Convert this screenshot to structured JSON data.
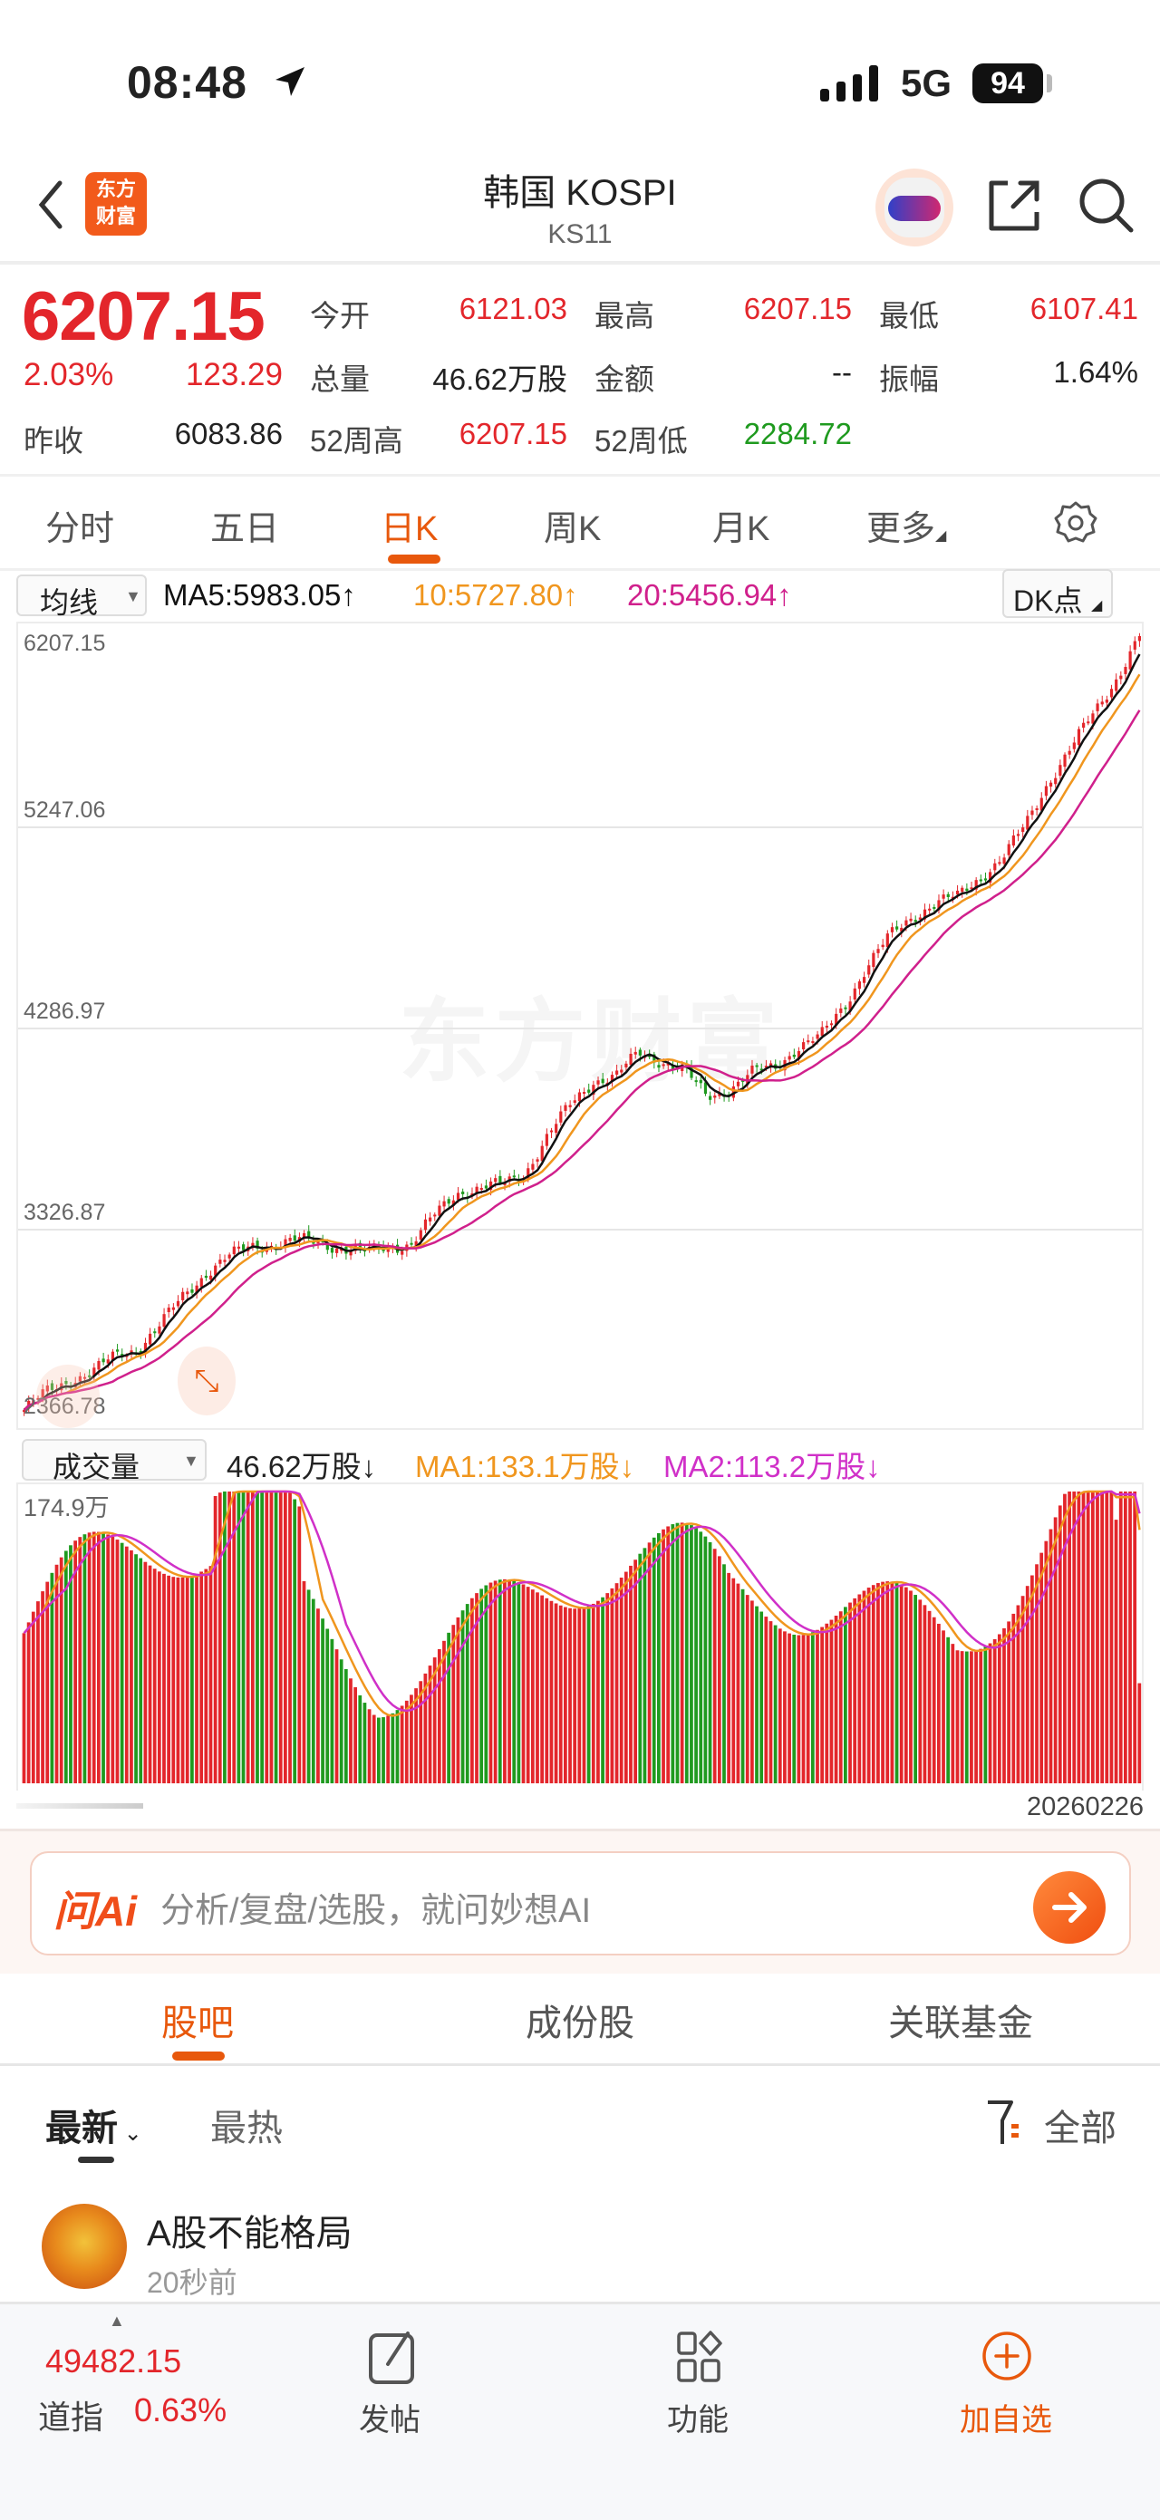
{
  "status_bar": {
    "time": "08:48",
    "network": "5G",
    "battery": "94"
  },
  "nav": {
    "logo_line1": "东方",
    "logo_line2": "财富",
    "title": "韩国 KOSPI",
    "code": "KS11"
  },
  "quote": {
    "price": "6207.15",
    "change_pct": "2.03%",
    "change_abs": "123.29",
    "fields": [
      {
        "label": "今开",
        "value": "6121.03",
        "color": "red"
      },
      {
        "label": "最高",
        "value": "6207.15",
        "color": "red"
      },
      {
        "label": "最低",
        "value": "6107.41",
        "color": "red"
      },
      {
        "label": "总量",
        "value": "46.62万股",
        "color": "black"
      },
      {
        "label": "金额",
        "value": "--",
        "color": "black"
      },
      {
        "label": "振幅",
        "value": "1.64%",
        "color": "black"
      },
      {
        "label": "昨收",
        "value": "6083.86",
        "color": "black"
      },
      {
        "label": "52周高",
        "value": "6207.15",
        "color": "red"
      },
      {
        "label": "52周低",
        "value": "2284.72",
        "color": "green"
      }
    ]
  },
  "period_tabs": {
    "items": [
      "分时",
      "五日",
      "日K",
      "周K",
      "月K",
      "更多"
    ],
    "active": "日K"
  },
  "ma_legend": {
    "selector": "均线",
    "ma5": "MA5:5983.05↑",
    "ma10": "10:5727.80↑",
    "ma20": "20:5456.94↑",
    "dk_button": "DK点"
  },
  "volume_legend": {
    "selector": "成交量",
    "vol": "46.62万股↓",
    "ma1": "MA1:133.1万股↓",
    "ma2": "MA2:113.2万股↓"
  },
  "colors": {
    "up": "#e3262b",
    "down": "#1f9a1f",
    "accent": "#e8580c",
    "ma5": "#111111",
    "ma10": "#f0961e",
    "ma20": "#d0208c"
  },
  "chart_data": [
    {
      "type": "candlestick",
      "title": "韩国 KOSPI 日K",
      "ylabel": "",
      "y_ticks": [
        "6207.15",
        "5247.06",
        "4286.97",
        "3326.87",
        "2366.78"
      ],
      "ylim": [
        2366.78,
        6207.15
      ],
      "grid": true,
      "x_end_label": "20260226",
      "close_path_approx": [
        2330,
        2420,
        2480,
        2520,
        2600,
        2640,
        2760,
        2900,
        3020,
        3100,
        3150,
        3160,
        3180,
        3170,
        3140,
        3120,
        3150,
        3160,
        3300,
        3420,
        3440,
        3460,
        3520,
        3700,
        3860,
        3980,
        4000,
        4120,
        4080,
        4030,
        3900,
        3940,
        4020,
        4050,
        4150,
        4200,
        4350,
        4550,
        4700,
        4800,
        4870,
        4900,
        5000,
        5100,
        5260,
        5480,
        5650,
        5820,
        6000,
        6207.15
      ],
      "series": [
        {
          "name": "MA5",
          "last": 5983.05
        },
        {
          "name": "MA10",
          "last": 5727.8
        },
        {
          "name": "MA20",
          "last": 5456.94
        }
      ],
      "watermark": "东方财富"
    },
    {
      "type": "bar",
      "title": "成交量",
      "y_max_label": "174.9万",
      "last_volume": "46.62万股",
      "series": [
        {
          "name": "MA1",
          "last": "133.1万股"
        },
        {
          "name": "MA2",
          "last": "113.2万股"
        }
      ]
    }
  ],
  "ai_box": {
    "logo": "问Ai",
    "placeholder": "分析/复盘/选股，就问妙想AI"
  },
  "content_tabs": {
    "items": [
      "股吧",
      "成份股",
      "关联基金"
    ],
    "active": "股吧"
  },
  "sort": {
    "items": [
      "最新",
      "最热"
    ],
    "active": "最新",
    "filter": "全部"
  },
  "post": {
    "author": "A股不能格局",
    "time": "20秒前"
  },
  "footer": {
    "index_value": "49482.15",
    "index_name": "道指",
    "index_change": "0.63%",
    "items": [
      "发帖",
      "功能",
      "加自选"
    ]
  }
}
